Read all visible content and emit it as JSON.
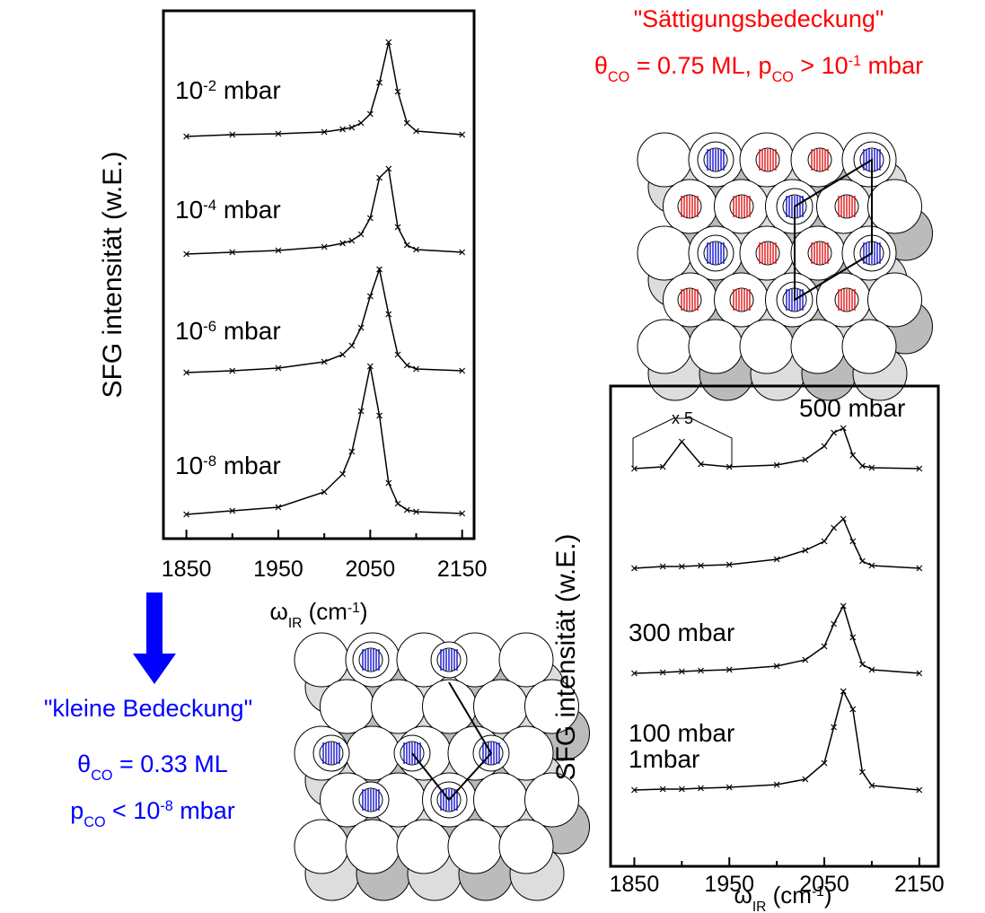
{
  "chart_data": [
    {
      "type": "line",
      "xlabel": [
        {
          "text": "ω"
        },
        {
          "text": "IR",
          "shift": "sub"
        },
        {
          "text": " (cm"
        },
        {
          "text": "-1",
          "shift": "sup"
        },
        {
          "text": ")"
        }
      ],
      "ylabel": "SFG intensität (w.E.)",
      "xlim": [
        1825,
        2163
      ],
      "xticks": [
        1850,
        1950,
        2050,
        2150
      ],
      "minor_xticks": [
        1900,
        2000,
        2100
      ],
      "x": [
        1850,
        1900,
        1950,
        2000,
        2020,
        2030,
        2040,
        2050,
        2060,
        2070,
        2080,
        2090,
        2100,
        2150
      ],
      "color": "#000000",
      "series": [
        {
          "label": [
            {
              "text": "10"
            },
            {
              "text": "-2",
              "shift": "sup"
            },
            {
              "text": " mbar"
            }
          ],
          "values": [
            0,
            0.02,
            0.03,
            0.05,
            0.08,
            0.1,
            0.15,
            0.25,
            0.6,
            1.05,
            0.5,
            0.15,
            0.06,
            0.02
          ]
        },
        {
          "label": [
            {
              "text": "10"
            },
            {
              "text": "-4",
              "shift": "sup"
            },
            {
              "text": " mbar"
            }
          ],
          "values": [
            0,
            0.02,
            0.04,
            0.08,
            0.12,
            0.15,
            0.22,
            0.4,
            0.85,
            0.95,
            0.3,
            0.1,
            0.05,
            0.02
          ]
        },
        {
          "label": [
            {
              "text": "10"
            },
            {
              "text": "-6",
              "shift": "sup"
            },
            {
              "text": " mbar"
            }
          ],
          "values": [
            0,
            0.02,
            0.05,
            0.12,
            0.2,
            0.3,
            0.5,
            0.85,
            1.15,
            0.65,
            0.2,
            0.08,
            0.04,
            0.02
          ]
        },
        {
          "label": [
            {
              "text": "10"
            },
            {
              "text": "-8",
              "shift": "sup"
            },
            {
              "text": " mbar"
            }
          ],
          "values": [
            0,
            0.04,
            0.08,
            0.25,
            0.45,
            0.7,
            1.15,
            1.65,
            1.1,
            0.35,
            0.12,
            0.05,
            0.03,
            0.01
          ]
        }
      ]
    },
    {
      "type": "line",
      "xlabel": [
        {
          "text": "ω"
        },
        {
          "text": "IR",
          "shift": "sub"
        },
        {
          "text": " (cm"
        },
        {
          "text": "-1",
          "shift": "sup"
        },
        {
          "text": ")"
        }
      ],
      "ylabel": "SFG intensität (w.E.)",
      "annotation": "x 5",
      "xlim": [
        1825,
        2170
      ],
      "xticks": [
        1850,
        1950,
        2050,
        2150
      ],
      "minor_xticks": [
        1900,
        2000,
        2100
      ],
      "x": [
        1850,
        1880,
        1900,
        1920,
        1950,
        2000,
        2030,
        2050,
        2060,
        2070,
        2080,
        2090,
        2100,
        2150
      ],
      "color": "#000000",
      "series": [
        {
          "label": [
            {
              "text": "500 mbar"
            }
          ],
          "values": [
            0,
            0.02,
            0.3,
            0.05,
            0.02,
            0.04,
            0.1,
            0.25,
            0.4,
            0.45,
            0.15,
            0.03,
            0.01,
            0
          ]
        },
        {
          "label": [
            {
              "text": "300 mbar"
            }
          ],
          "values": [
            0,
            0.02,
            0.02,
            0.03,
            0.04,
            0.1,
            0.2,
            0.3,
            0.45,
            0.55,
            0.3,
            0.08,
            0.03,
            0
          ]
        },
        {
          "label": [
            {
              "text": "100 mbar"
            }
          ],
          "values": [
            0,
            0.01,
            0.02,
            0.03,
            0.04,
            0.08,
            0.15,
            0.3,
            0.55,
            0.75,
            0.4,
            0.1,
            0.04,
            0
          ]
        },
        {
          "label": [
            {
              "text": "1mbar"
            }
          ],
          "values": [
            0,
            0.01,
            0.01,
            0.02,
            0.03,
            0.06,
            0.12,
            0.3,
            0.7,
            1.1,
            0.9,
            0.2,
            0.05,
            0
          ]
        }
      ]
    }
  ],
  "annotations": {
    "saturation_title": "\"Sättigungsbedeckung\"",
    "saturation_coverage": [
      {
        "text": "θ"
      },
      {
        "text": "CO",
        "shift": "sub"
      },
      {
        "text": " = 0.75 ML, p"
      },
      {
        "text": "CO",
        "shift": "sub"
      },
      {
        "text": " > 10"
      },
      {
        "text": "-1",
        "shift": "sup"
      },
      {
        "text": " mbar"
      }
    ],
    "low_title": "\"kleine Bedeckung\"",
    "low_coverage": [
      {
        "text": "θ"
      },
      {
        "text": "CO",
        "shift": "sub"
      },
      {
        "text": " = 0.33 ML"
      }
    ],
    "low_pressure": [
      {
        "text": "p"
      },
      {
        "text": "CO",
        "shift": "sub"
      },
      {
        "text": " < 10"
      },
      {
        "text": "-8",
        "shift": "sup"
      },
      {
        "text": " mbar"
      }
    ]
  }
}
